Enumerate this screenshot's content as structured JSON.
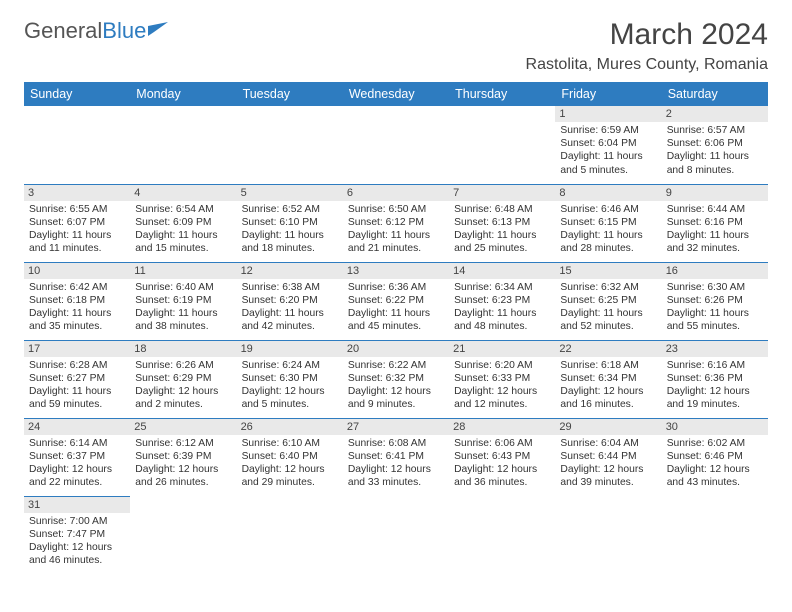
{
  "logo": {
    "text1": "General",
    "text2": "Blue"
  },
  "title": "March 2024",
  "location": "Rastolita, Mures County, Romania",
  "colors": {
    "header_bg": "#2e7cc0",
    "daynum_bg": "#e9e9e9",
    "border": "#2e7cc0",
    "text": "#333333"
  },
  "day_headers": [
    "Sunday",
    "Monday",
    "Tuesday",
    "Wednesday",
    "Thursday",
    "Friday",
    "Saturday"
  ],
  "weeks": [
    [
      null,
      null,
      null,
      null,
      null,
      {
        "n": "1",
        "sr": "Sunrise: 6:59 AM",
        "ss": "Sunset: 6:04 PM",
        "dl1": "Daylight: 11 hours",
        "dl2": "and 5 minutes."
      },
      {
        "n": "2",
        "sr": "Sunrise: 6:57 AM",
        "ss": "Sunset: 6:06 PM",
        "dl1": "Daylight: 11 hours",
        "dl2": "and 8 minutes."
      }
    ],
    [
      {
        "n": "3",
        "sr": "Sunrise: 6:55 AM",
        "ss": "Sunset: 6:07 PM",
        "dl1": "Daylight: 11 hours",
        "dl2": "and 11 minutes."
      },
      {
        "n": "4",
        "sr": "Sunrise: 6:54 AM",
        "ss": "Sunset: 6:09 PM",
        "dl1": "Daylight: 11 hours",
        "dl2": "and 15 minutes."
      },
      {
        "n": "5",
        "sr": "Sunrise: 6:52 AM",
        "ss": "Sunset: 6:10 PM",
        "dl1": "Daylight: 11 hours",
        "dl2": "and 18 minutes."
      },
      {
        "n": "6",
        "sr": "Sunrise: 6:50 AM",
        "ss": "Sunset: 6:12 PM",
        "dl1": "Daylight: 11 hours",
        "dl2": "and 21 minutes."
      },
      {
        "n": "7",
        "sr": "Sunrise: 6:48 AM",
        "ss": "Sunset: 6:13 PM",
        "dl1": "Daylight: 11 hours",
        "dl2": "and 25 minutes."
      },
      {
        "n": "8",
        "sr": "Sunrise: 6:46 AM",
        "ss": "Sunset: 6:15 PM",
        "dl1": "Daylight: 11 hours",
        "dl2": "and 28 minutes."
      },
      {
        "n": "9",
        "sr": "Sunrise: 6:44 AM",
        "ss": "Sunset: 6:16 PM",
        "dl1": "Daylight: 11 hours",
        "dl2": "and 32 minutes."
      }
    ],
    [
      {
        "n": "10",
        "sr": "Sunrise: 6:42 AM",
        "ss": "Sunset: 6:18 PM",
        "dl1": "Daylight: 11 hours",
        "dl2": "and 35 minutes."
      },
      {
        "n": "11",
        "sr": "Sunrise: 6:40 AM",
        "ss": "Sunset: 6:19 PM",
        "dl1": "Daylight: 11 hours",
        "dl2": "and 38 minutes."
      },
      {
        "n": "12",
        "sr": "Sunrise: 6:38 AM",
        "ss": "Sunset: 6:20 PM",
        "dl1": "Daylight: 11 hours",
        "dl2": "and 42 minutes."
      },
      {
        "n": "13",
        "sr": "Sunrise: 6:36 AM",
        "ss": "Sunset: 6:22 PM",
        "dl1": "Daylight: 11 hours",
        "dl2": "and 45 minutes."
      },
      {
        "n": "14",
        "sr": "Sunrise: 6:34 AM",
        "ss": "Sunset: 6:23 PM",
        "dl1": "Daylight: 11 hours",
        "dl2": "and 48 minutes."
      },
      {
        "n": "15",
        "sr": "Sunrise: 6:32 AM",
        "ss": "Sunset: 6:25 PM",
        "dl1": "Daylight: 11 hours",
        "dl2": "and 52 minutes."
      },
      {
        "n": "16",
        "sr": "Sunrise: 6:30 AM",
        "ss": "Sunset: 6:26 PM",
        "dl1": "Daylight: 11 hours",
        "dl2": "and 55 minutes."
      }
    ],
    [
      {
        "n": "17",
        "sr": "Sunrise: 6:28 AM",
        "ss": "Sunset: 6:27 PM",
        "dl1": "Daylight: 11 hours",
        "dl2": "and 59 minutes."
      },
      {
        "n": "18",
        "sr": "Sunrise: 6:26 AM",
        "ss": "Sunset: 6:29 PM",
        "dl1": "Daylight: 12 hours",
        "dl2": "and 2 minutes."
      },
      {
        "n": "19",
        "sr": "Sunrise: 6:24 AM",
        "ss": "Sunset: 6:30 PM",
        "dl1": "Daylight: 12 hours",
        "dl2": "and 5 minutes."
      },
      {
        "n": "20",
        "sr": "Sunrise: 6:22 AM",
        "ss": "Sunset: 6:32 PM",
        "dl1": "Daylight: 12 hours",
        "dl2": "and 9 minutes."
      },
      {
        "n": "21",
        "sr": "Sunrise: 6:20 AM",
        "ss": "Sunset: 6:33 PM",
        "dl1": "Daylight: 12 hours",
        "dl2": "and 12 minutes."
      },
      {
        "n": "22",
        "sr": "Sunrise: 6:18 AM",
        "ss": "Sunset: 6:34 PM",
        "dl1": "Daylight: 12 hours",
        "dl2": "and 16 minutes."
      },
      {
        "n": "23",
        "sr": "Sunrise: 6:16 AM",
        "ss": "Sunset: 6:36 PM",
        "dl1": "Daylight: 12 hours",
        "dl2": "and 19 minutes."
      }
    ],
    [
      {
        "n": "24",
        "sr": "Sunrise: 6:14 AM",
        "ss": "Sunset: 6:37 PM",
        "dl1": "Daylight: 12 hours",
        "dl2": "and 22 minutes."
      },
      {
        "n": "25",
        "sr": "Sunrise: 6:12 AM",
        "ss": "Sunset: 6:39 PM",
        "dl1": "Daylight: 12 hours",
        "dl2": "and 26 minutes."
      },
      {
        "n": "26",
        "sr": "Sunrise: 6:10 AM",
        "ss": "Sunset: 6:40 PM",
        "dl1": "Daylight: 12 hours",
        "dl2": "and 29 minutes."
      },
      {
        "n": "27",
        "sr": "Sunrise: 6:08 AM",
        "ss": "Sunset: 6:41 PM",
        "dl1": "Daylight: 12 hours",
        "dl2": "and 33 minutes."
      },
      {
        "n": "28",
        "sr": "Sunrise: 6:06 AM",
        "ss": "Sunset: 6:43 PM",
        "dl1": "Daylight: 12 hours",
        "dl2": "and 36 minutes."
      },
      {
        "n": "29",
        "sr": "Sunrise: 6:04 AM",
        "ss": "Sunset: 6:44 PM",
        "dl1": "Daylight: 12 hours",
        "dl2": "and 39 minutes."
      },
      {
        "n": "30",
        "sr": "Sunrise: 6:02 AM",
        "ss": "Sunset: 6:46 PM",
        "dl1": "Daylight: 12 hours",
        "dl2": "and 43 minutes."
      }
    ],
    [
      {
        "n": "31",
        "sr": "Sunrise: 7:00 AM",
        "ss": "Sunset: 7:47 PM",
        "dl1": "Daylight: 12 hours",
        "dl2": "and 46 minutes."
      },
      null,
      null,
      null,
      null,
      null,
      null
    ]
  ]
}
